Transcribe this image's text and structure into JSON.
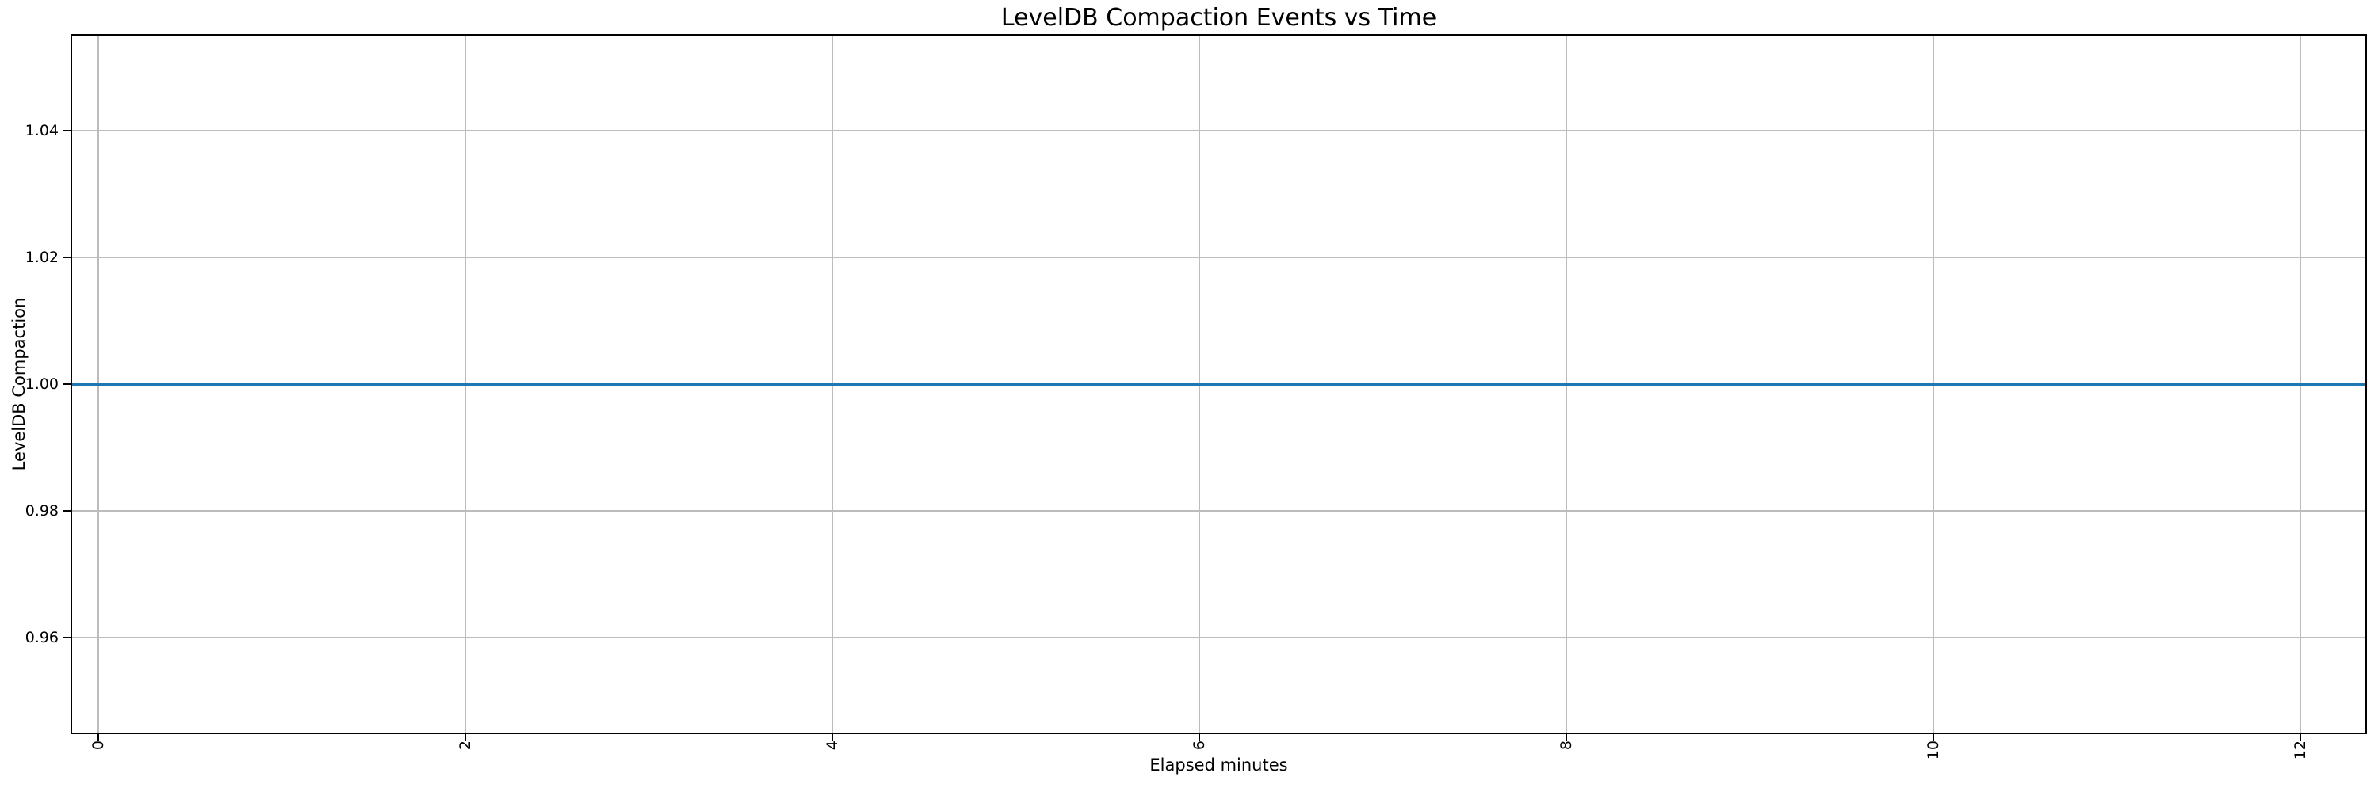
{
  "chart_data": {
    "type": "line",
    "title": "LevelDB Compaction Events vs Time",
    "xlabel": "Elapsed minutes",
    "ylabel": "LevelDB Compaction",
    "xlim": [
      -0.1425,
      12.3545
    ],
    "ylim": [
      0.945,
      1.055
    ],
    "x_ticks": [
      0,
      2,
      4,
      6,
      8,
      10,
      12
    ],
    "x_tick_labels": [
      "0",
      "2",
      "4",
      "6",
      "8",
      "10",
      "12"
    ],
    "y_ticks": [
      0.96,
      0.98,
      1.0,
      1.02,
      1.04
    ],
    "y_tick_labels": [
      "0.96",
      "0.98",
      "1.00",
      "1.02",
      "1.04"
    ],
    "x_tick_rotation_deg": 90,
    "grid": true,
    "legend": false,
    "series": [
      {
        "name": "LevelDB Compaction",
        "constant_y": 1.0,
        "x_start": -0.1425,
        "x_end": 12.3545,
        "color": "#1f77b4"
      }
    ]
  },
  "colors": {
    "line": "#1f77b4",
    "grid": "#bcbcbc",
    "spine": "#000000",
    "text": "#000000",
    "background": "#ffffff"
  }
}
